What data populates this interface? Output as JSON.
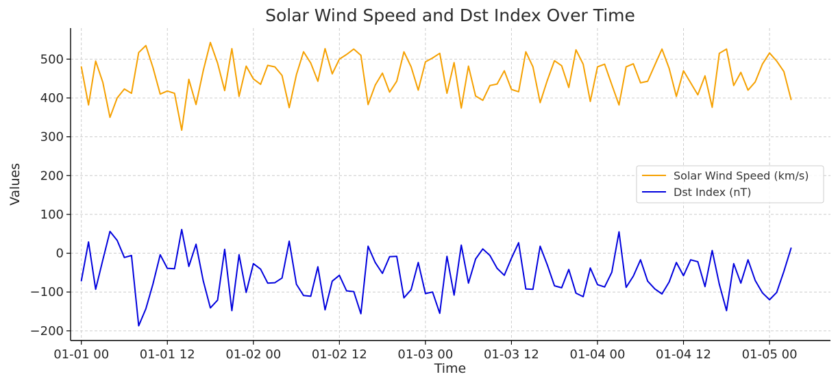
{
  "chart_data": {
    "type": "line",
    "title": "Solar Wind Speed and Dst Index Over Time",
    "xlabel": "Time",
    "ylabel": "Values",
    "grid": true,
    "legend_position": "center-right",
    "ylim": [
      -225,
      580
    ],
    "xlim": [
      -1.5,
      104.5
    ],
    "x_unit": "hours from 01-01 00",
    "yticks": [
      -200,
      -100,
      0,
      100,
      200,
      300,
      400,
      500
    ],
    "xticks": [
      {
        "value": 0,
        "label": "01-01 00"
      },
      {
        "value": 12,
        "label": "01-01 12"
      },
      {
        "value": 24,
        "label": "01-02 00"
      },
      {
        "value": 36,
        "label": "01-02 12"
      },
      {
        "value": 48,
        "label": "01-03 00"
      },
      {
        "value": 60,
        "label": "01-03 12"
      },
      {
        "value": 72,
        "label": "01-04 00"
      },
      {
        "value": 84,
        "label": "01-04 12"
      },
      {
        "value": 96,
        "label": "01-05 00"
      }
    ],
    "series": [
      {
        "name": "Solar Wind Speed (km/s)",
        "color": "#f5a000",
        "values": [
          480,
          382,
          495,
          440,
          350,
          400,
          423,
          412,
          517,
          535,
          478,
          410,
          418,
          412,
          317,
          448,
          383,
          470,
          543,
          490,
          419,
          527,
          404,
          482,
          449,
          435,
          484,
          480,
          458,
          375,
          460,
          519,
          490,
          443,
          527,
          462,
          500,
          512,
          526,
          510,
          383,
          433,
          464,
          415,
          443,
          519,
          480,
          420,
          493,
          503,
          515,
          412,
          491,
          374,
          482,
          405,
          394,
          432,
          436,
          470,
          422,
          416,
          519,
          480,
          388,
          445,
          496,
          483,
          427,
          524,
          487,
          391,
          480,
          487,
          434,
          382,
          480,
          488,
          439,
          443,
          485,
          526,
          476,
          404,
          470,
          439,
          408,
          457,
          376,
          515,
          526,
          432,
          466,
          420,
          441,
          487,
          516,
          495,
          468,
          396
        ]
      },
      {
        "name": "Dst Index (nT)",
        "color": "#0000dd",
        "values": [
          -71,
          29,
          -93,
          -17,
          56,
          33,
          -11,
          -6,
          -187,
          -143,
          -79,
          -4,
          -39,
          -40,
          61,
          -34,
          23,
          -71,
          -141,
          -121,
          10,
          -148,
          -4,
          -101,
          -27,
          -41,
          -77,
          -76,
          -64,
          31,
          -80,
          -109,
          -111,
          -35,
          -146,
          -72,
          -57,
          -97,
          -99,
          -156,
          18,
          -24,
          -52,
          -9,
          -8,
          -115,
          -94,
          -24,
          -104,
          -100,
          -155,
          -8,
          -108,
          21,
          -77,
          -15,
          11,
          -6,
          -39,
          -57,
          -13,
          27,
          -92,
          -93,
          18,
          -30,
          -84,
          -89,
          -42,
          -103,
          -112,
          -38,
          -81,
          -87,
          -49,
          55,
          -88,
          -59,
          -17,
          -72,
          -92,
          -105,
          -74,
          -24,
          -58,
          -17,
          -22,
          -86,
          7,
          -80,
          -148,
          -27,
          -77,
          -17,
          -70,
          -102,
          -120,
          -101,
          -47,
          13
        ]
      }
    ]
  }
}
